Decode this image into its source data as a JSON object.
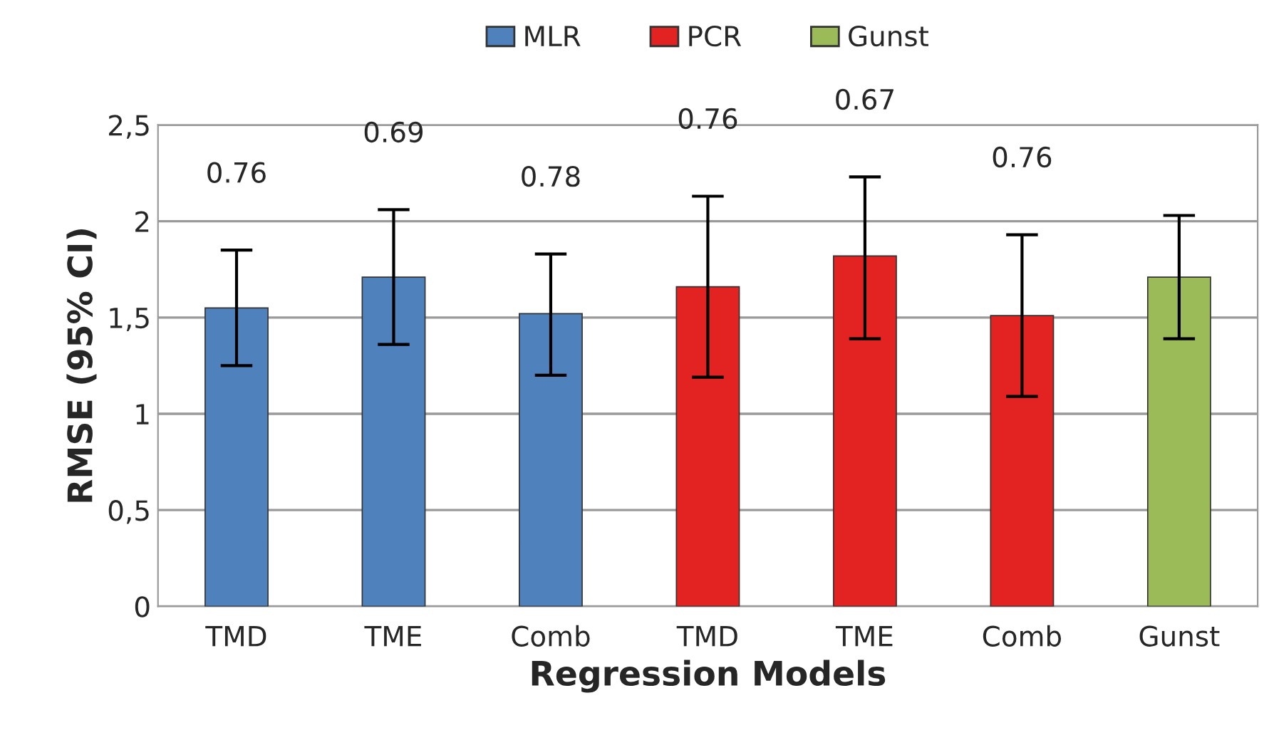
{
  "chart_data": {
    "type": "bar",
    "xlabel": "Regression Models",
    "ylabel": "RMSE (95% CI)",
    "categories": [
      "TMD",
      "TME",
      "Comb",
      "TMD",
      "TME",
      "Comb",
      "Gunst"
    ],
    "series": [
      {
        "name": "MLR",
        "color": "#4f81bd",
        "values": [
          1.55,
          1.71,
          1.52,
          null,
          null,
          null,
          null
        ],
        "errors": [
          [
            1.25,
            1.85
          ],
          [
            1.36,
            2.06
          ],
          [
            1.2,
            1.83
          ],
          null,
          null,
          null,
          null
        ]
      },
      {
        "name": "PCR",
        "color": "#e32222",
        "values": [
          null,
          null,
          null,
          1.66,
          1.82,
          1.51,
          null
        ],
        "errors": [
          null,
          null,
          null,
          [
            1.19,
            2.13
          ],
          [
            1.39,
            2.23
          ],
          [
            1.09,
            1.93
          ],
          null
        ]
      },
      {
        "name": "Gunst",
        "color": "#9bbb59",
        "values": [
          null,
          null,
          null,
          null,
          null,
          null,
          1.71
        ],
        "errors": [
          null,
          null,
          null,
          null,
          null,
          null,
          [
            1.39,
            2.03
          ]
        ]
      }
    ],
    "annotations": [
      "0.76",
      "0.69",
      "0.78",
      "0.76",
      "0.67",
      "0.76"
    ],
    "ylim": [
      0,
      2.5
    ],
    "yticks": [
      0,
      {
        "value": 0.5,
        "label": "0,5"
      },
      1,
      {
        "value": 1.5,
        "label": "1,5"
      },
      2,
      {
        "value": 2.5,
        "label": "2,5"
      }
    ],
    "grid": "y",
    "legend": "top"
  }
}
